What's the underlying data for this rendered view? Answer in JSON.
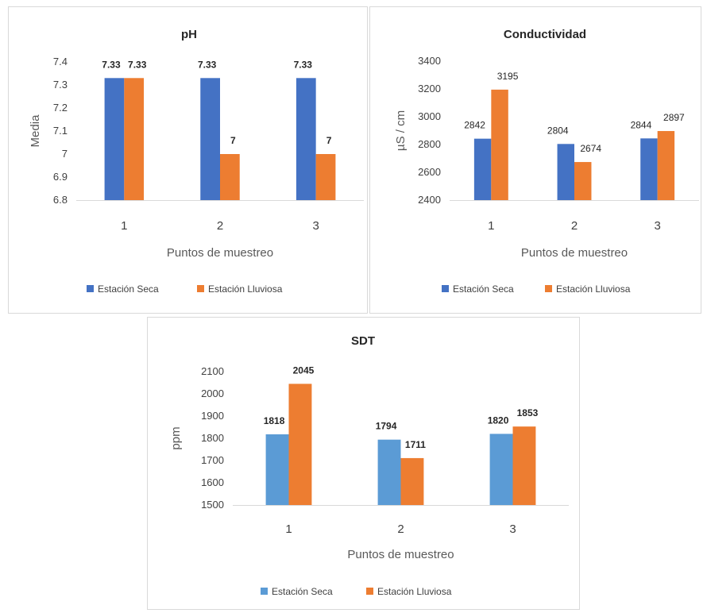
{
  "chart_data": [
    {
      "type": "bar",
      "title": "pH",
      "xlabel": "Puntos de muestreo",
      "ylabel": "Media",
      "categories": [
        "1",
        "2",
        "3"
      ],
      "ylim": [
        6.8,
        7.4
      ],
      "yticks": [
        6.8,
        6.9,
        7,
        7.1,
        7.2,
        7.3,
        7.4
      ],
      "ytick_labels": [
        "6.8",
        "6.9",
        "7",
        "7.1",
        "7.2",
        "7.3",
        "7.4"
      ],
      "grid": false,
      "legend": "bottom",
      "label_bold": true,
      "series": [
        {
          "name": "Estación Seca",
          "color": "#4472C4",
          "values": [
            7.33,
            7.33,
            7.33
          ],
          "labels": [
            "7.33",
            "7.33",
            "7.33"
          ]
        },
        {
          "name": "Estación Lluviosa",
          "color": "#ED7D31",
          "values": [
            7.33,
            7,
            7
          ],
          "labels": [
            "7.33",
            "7",
            "7"
          ]
        }
      ]
    },
    {
      "type": "bar",
      "title": "Conductividad",
      "xlabel": "Puntos de muestreo",
      "ylabel": "µS / cm",
      "categories": [
        "1",
        "2",
        "3"
      ],
      "ylim": [
        2400,
        3400
      ],
      "yticks": [
        2400,
        2600,
        2800,
        3000,
        3200,
        3400
      ],
      "ytick_labels": [
        "2400",
        "2600",
        "2800",
        "3000",
        "3200",
        "3400"
      ],
      "grid": false,
      "legend": "bottom",
      "label_bold": false,
      "series": [
        {
          "name": "Estación Seca",
          "color": "#4472C4",
          "values": [
            2842,
            2804,
            2844
          ],
          "labels": [
            "2842",
            "2804",
            "2844"
          ]
        },
        {
          "name": "Estación Lluviosa",
          "color": "#ED7D31",
          "values": [
            3195,
            2674,
            2897
          ],
          "labels": [
            "3195",
            "2674",
            "2897"
          ]
        }
      ]
    },
    {
      "type": "bar",
      "title": "SDT",
      "xlabel": "Puntos de muestreo",
      "ylabel": "ppm",
      "categories": [
        "1",
        "2",
        "3"
      ],
      "ylim": [
        1500,
        2100
      ],
      "yticks": [
        1500,
        1600,
        1700,
        1800,
        1900,
        2000,
        2100
      ],
      "ytick_labels": [
        "1500",
        "1600",
        "1700",
        "1800",
        "1900",
        "2000",
        "2100"
      ],
      "grid": false,
      "legend": "bottom",
      "label_bold": true,
      "series": [
        {
          "name": "Estación Seca",
          "color": "#5B9BD5",
          "values": [
            1818,
            1794,
            1820
          ],
          "labels": [
            "1818",
            "1794",
            "1820"
          ]
        },
        {
          "name": "Estación Lluviosa",
          "color": "#ED7D31",
          "values": [
            2045,
            1711,
            1853
          ],
          "labels": [
            "2045",
            "1711",
            "1853"
          ]
        }
      ]
    }
  ]
}
